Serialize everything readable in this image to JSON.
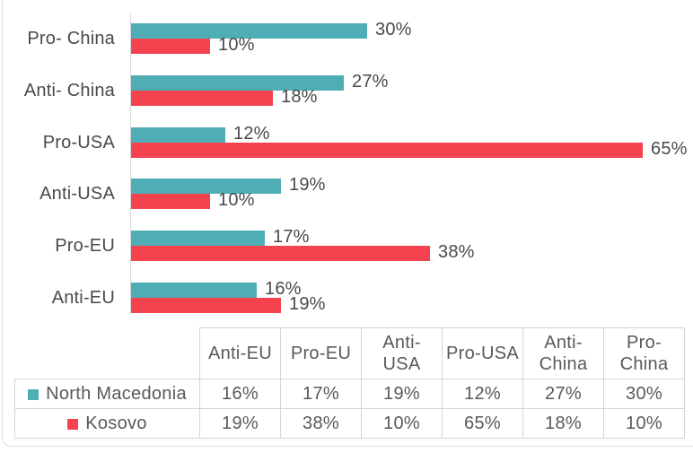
{
  "page": {
    "background": "#ffffff",
    "card_edge_color": "#d9dde2"
  },
  "chart_data": {
    "type": "bar",
    "orientation": "horizontal",
    "title": "",
    "xlabel": "",
    "ylabel": "",
    "categories": [
      "Pro- China",
      "Anti- China",
      "Pro-USA",
      "Anti-USA",
      "Pro-EU",
      "Anti-EU"
    ],
    "series": [
      {
        "name": "North Macedonia",
        "color": "#4fadb5",
        "values": [
          30,
          27,
          12,
          19,
          17,
          16
        ]
      },
      {
        "name": "Kosovo",
        "color": "#f4424e",
        "values": [
          10,
          18,
          65,
          10,
          38,
          19
        ]
      }
    ],
    "value_labels": true,
    "value_suffix": "%",
    "xlim": [
      0,
      65
    ],
    "grid": false,
    "axis_color": "#d9d9d9",
    "label_color": "#4a4a4a",
    "legend_position": "data-table-below"
  },
  "data_table": {
    "corner_label": "",
    "columns": [
      "Anti-EU",
      "Pro-EU",
      "Anti-\nUSA",
      "Pro-USA",
      "Anti-\nChina",
      "Pro-\nChina"
    ],
    "rows": [
      {
        "label": "North Macedonia",
        "swatch_color": "#4fadb5",
        "values": [
          "16%",
          "17%",
          "19%",
          "12%",
          "27%",
          "30%"
        ]
      },
      {
        "label": "Kosovo",
        "swatch_color": "#f4424e",
        "values": [
          "19%",
          "38%",
          "10%",
          "65%",
          "18%",
          "10%"
        ]
      }
    ],
    "border_color": "#d4d4d4",
    "text_color": "#595959"
  }
}
